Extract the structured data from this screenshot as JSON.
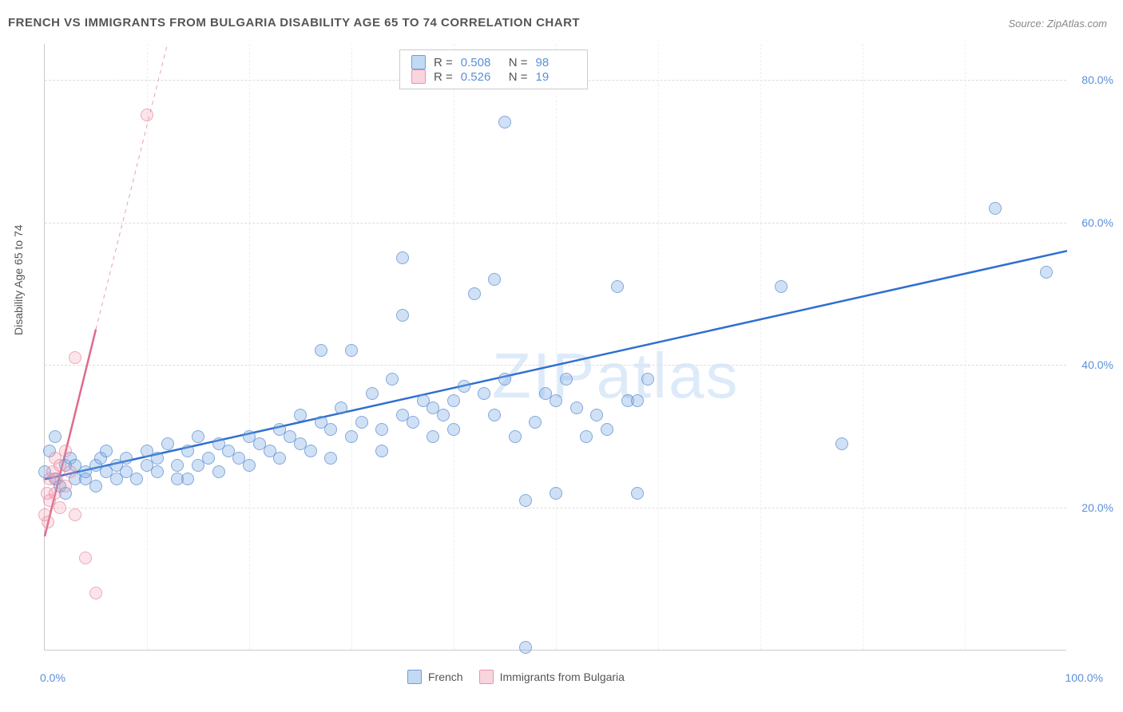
{
  "title": "FRENCH VS IMMIGRANTS FROM BULGARIA DISABILITY AGE 65 TO 74 CORRELATION CHART",
  "source": "Source: ZipAtlas.com",
  "y_axis_label": "Disability Age 65 to 74",
  "watermark": "ZIPatlas",
  "chart": {
    "type": "scatter",
    "xlim": [
      0,
      100
    ],
    "ylim": [
      0,
      85
    ],
    "x_ticks": [
      {
        "v": 0,
        "l": "0.0%"
      },
      {
        "v": 100,
        "l": "100.0%"
      }
    ],
    "y_ticks": [
      {
        "v": 20,
        "l": "20.0%"
      },
      {
        "v": 40,
        "l": "40.0%"
      },
      {
        "v": 60,
        "l": "60.0%"
      },
      {
        "v": 80,
        "l": "80.0%"
      }
    ],
    "grid_color": "#dddddd",
    "background_color": "#ffffff",
    "series": [
      {
        "name": "French",
        "color_fill": "rgba(120,170,230,0.35)",
        "color_stroke": "rgba(80,130,200,0.6)",
        "r": 0.508,
        "n": 98,
        "reg_line": {
          "x1": 0,
          "y1": 24,
          "x2": 100,
          "y2": 56,
          "color": "#2f6fd0",
          "width": 2.5,
          "dash": "none"
        },
        "points": [
          [
            0,
            25
          ],
          [
            0.5,
            28
          ],
          [
            1,
            24
          ],
          [
            1,
            30
          ],
          [
            1.5,
            23
          ],
          [
            2,
            26
          ],
          [
            2,
            22
          ],
          [
            2.5,
            27
          ],
          [
            3,
            24
          ],
          [
            3,
            26
          ],
          [
            4,
            24
          ],
          [
            4,
            25
          ],
          [
            5,
            26
          ],
          [
            5,
            23
          ],
          [
            5.5,
            27
          ],
          [
            6,
            25
          ],
          [
            6,
            28
          ],
          [
            7,
            24
          ],
          [
            7,
            26
          ],
          [
            8,
            25
          ],
          [
            8,
            27
          ],
          [
            9,
            24
          ],
          [
            10,
            26
          ],
          [
            10,
            28
          ],
          [
            11,
            27
          ],
          [
            11,
            25
          ],
          [
            12,
            29
          ],
          [
            13,
            26
          ],
          [
            13,
            24
          ],
          [
            14,
            28
          ],
          [
            15,
            26
          ],
          [
            15,
            30
          ],
          [
            16,
            27
          ],
          [
            17,
            29
          ],
          [
            17,
            25
          ],
          [
            18,
            28
          ],
          [
            19,
            27
          ],
          [
            20,
            30
          ],
          [
            20,
            26
          ],
          [
            21,
            29
          ],
          [
            22,
            28
          ],
          [
            23,
            31
          ],
          [
            23,
            27
          ],
          [
            24,
            30
          ],
          [
            25,
            29
          ],
          [
            25,
            33
          ],
          [
            26,
            28
          ],
          [
            27,
            32
          ],
          [
            28,
            31
          ],
          [
            28,
            27
          ],
          [
            29,
            34
          ],
          [
            30,
            30
          ],
          [
            30,
            42
          ],
          [
            31,
            32
          ],
          [
            32,
            36
          ],
          [
            33,
            31
          ],
          [
            33,
            28
          ],
          [
            34,
            38
          ],
          [
            35,
            55
          ],
          [
            35,
            33
          ],
          [
            36,
            32
          ],
          [
            37,
            35
          ],
          [
            38,
            30
          ],
          [
            38,
            34
          ],
          [
            39,
            33
          ],
          [
            40,
            35
          ],
          [
            40,
            31
          ],
          [
            41,
            37
          ],
          [
            42,
            50
          ],
          [
            43,
            36
          ],
          [
            44,
            33
          ],
          [
            44,
            52
          ],
          [
            45,
            38
          ],
          [
            46,
            30
          ],
          [
            47,
            21
          ],
          [
            48,
            32
          ],
          [
            49,
            36
          ],
          [
            50,
            22
          ],
          [
            50,
            35
          ],
          [
            51,
            38
          ],
          [
            52,
            34
          ],
          [
            53,
            30
          ],
          [
            54,
            33
          ],
          [
            55,
            31
          ],
          [
            56,
            51
          ],
          [
            57,
            35
          ],
          [
            58,
            22
          ],
          [
            58,
            35
          ],
          [
            59,
            38
          ],
          [
            45,
            74
          ],
          [
            47,
            0.5
          ],
          [
            72,
            51
          ],
          [
            78,
            29
          ],
          [
            93,
            62
          ],
          [
            98,
            53
          ],
          [
            35,
            47
          ],
          [
            27,
            42
          ],
          [
            14,
            24
          ]
        ]
      },
      {
        "name": "Immigrants from Bulgaria",
        "color_fill": "rgba(240,150,170,0.25)",
        "color_stroke": "rgba(230,120,150,0.55)",
        "r": 0.526,
        "n": 19,
        "reg_line": {
          "x1": 0,
          "y1": 16,
          "x2": 5,
          "y2": 45,
          "color": "#e06a8a",
          "width": 2.5,
          "dash": "none"
        },
        "reg_line_ext": {
          "x1": 5,
          "y1": 45,
          "x2": 12,
          "y2": 85,
          "color": "#e8a0b5",
          "width": 1,
          "dash": "5,5"
        },
        "points": [
          [
            0,
            19
          ],
          [
            0.2,
            22
          ],
          [
            0.3,
            18
          ],
          [
            0.5,
            24
          ],
          [
            0.5,
            21
          ],
          [
            0.8,
            25
          ],
          [
            1,
            22
          ],
          [
            1,
            27
          ],
          [
            1.2,
            24
          ],
          [
            1.5,
            26
          ],
          [
            1.5,
            20
          ],
          [
            2,
            28
          ],
          [
            2,
            23
          ],
          [
            2.5,
            25
          ],
          [
            3,
            19
          ],
          [
            3,
            41
          ],
          [
            4,
            13
          ],
          [
            5,
            8
          ],
          [
            10,
            75
          ]
        ]
      }
    ]
  },
  "legend_top": {
    "rows": [
      {
        "sw": "blue",
        "r_lbl": "R =",
        "r_val": "0.508",
        "n_lbl": "N =",
        "n_val": "98"
      },
      {
        "sw": "pink",
        "r_lbl": "R =",
        "r_val": "0.526",
        "n_lbl": "N =",
        "n_val": "19"
      }
    ]
  },
  "legend_bottom": {
    "items": [
      {
        "sw": "blue",
        "label": "French"
      },
      {
        "sw": "pink",
        "label": "Immigrants from Bulgaria"
      }
    ]
  }
}
